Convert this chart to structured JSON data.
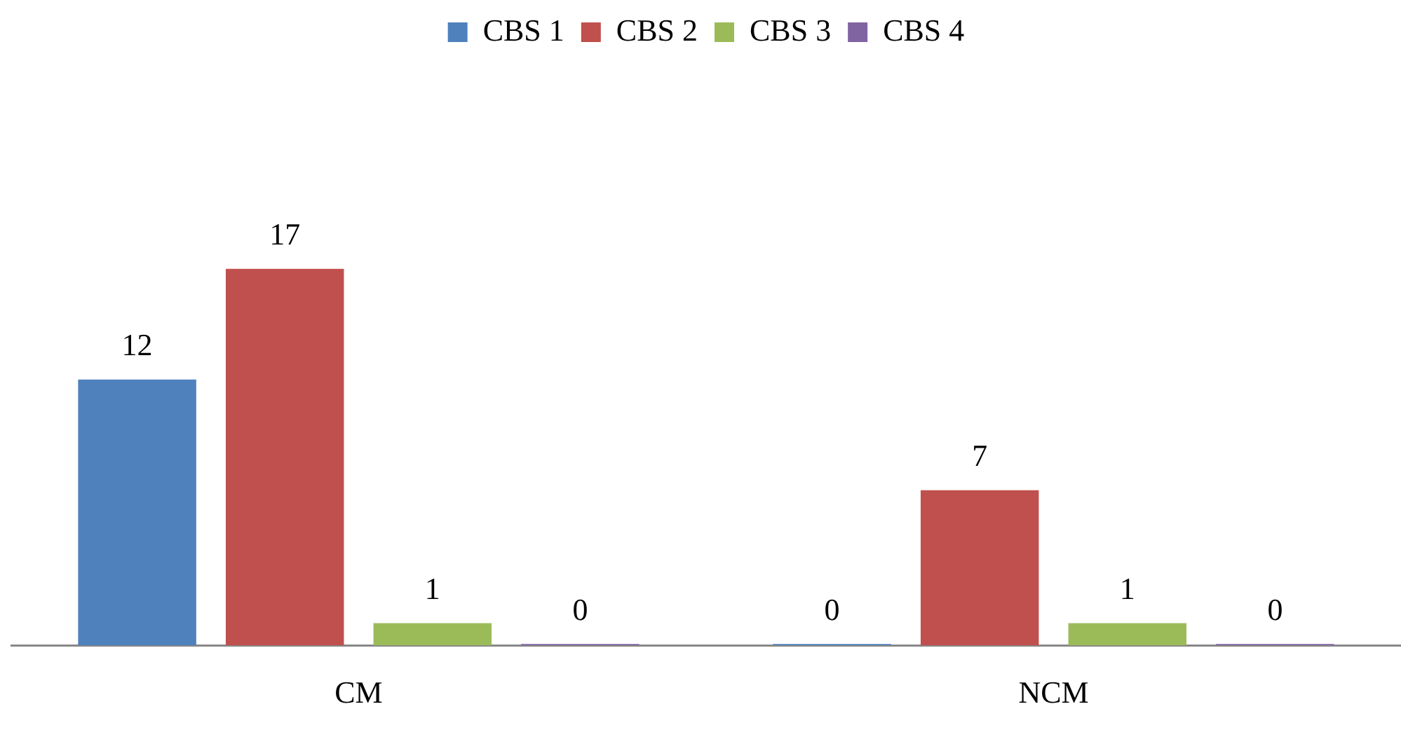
{
  "chart_data": {
    "type": "bar",
    "categories": [
      "CM",
      "NCM"
    ],
    "series": [
      {
        "name": "CBS 1",
        "color": "#4f81bd",
        "values": [
          12,
          0
        ]
      },
      {
        "name": "CBS 2",
        "color": "#c0504d",
        "values": [
          17,
          7
        ]
      },
      {
        "name": "CBS 3",
        "color": "#9bbb59",
        "values": [
          1,
          1
        ]
      },
      {
        "name": "CBS 4",
        "color": "#8064a2",
        "values": [
          0,
          0
        ]
      }
    ],
    "data_labels": true,
    "legend": "top",
    "grid": false
  }
}
